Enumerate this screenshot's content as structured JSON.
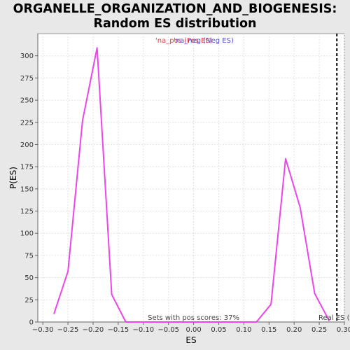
{
  "chart_data": {
    "type": "line",
    "title": "ORGANELLE_ORGANIZATION_AND_BIOGENESIS:",
    "subtitle": "Random ES distribution",
    "xlabel": "ES",
    "ylabel": "P(ES)",
    "xlim": [
      -0.31,
      0.3
    ],
    "ylim": [
      0,
      325
    ],
    "xticks": [
      -0.3,
      -0.25,
      -0.2,
      -0.15,
      -0.1,
      -0.05,
      0.0,
      0.05,
      0.1,
      0.15,
      0.2,
      0.25,
      0.3
    ],
    "xtick_labels": [
      "−0.30",
      "−0.25",
      "−0.20",
      "−0.15",
      "−0.10",
      "−0.05",
      "0.00",
      "0.05",
      "0.10",
      "0.15",
      "0.20",
      "0.25",
      "0.30"
    ],
    "yticks": [
      0,
      25,
      50,
      75,
      100,
      125,
      150,
      175,
      200,
      225,
      250,
      275,
      300
    ],
    "ytick_labels": [
      "0",
      "25",
      "50",
      "75",
      "100",
      "125",
      "150",
      "175",
      "200",
      "225",
      "250",
      "275",
      "300"
    ],
    "grid": true,
    "legend_placement": "top-center",
    "series": [
      {
        "name": "'na_pos (Pos ES)",
        "color": "#e04040",
        "x": [],
        "y": []
      },
      {
        "name": "'na_neg (Neg ES)",
        "color": "#5050d0",
        "x": [],
        "y": []
      },
      {
        "name": "",
        "color": "#ee44ee",
        "x": [
          -0.278,
          -0.25,
          -0.221,
          -0.192,
          -0.163,
          -0.135,
          -0.106,
          -0.077,
          -0.048,
          -0.02,
          0.009,
          0.038,
          0.067,
          0.096,
          0.125,
          0.154,
          0.183,
          0.212,
          0.241,
          0.27
        ],
        "y": [
          9,
          57,
          227,
          309,
          31,
          0,
          0,
          0,
          0,
          0,
          0,
          0,
          0,
          0,
          0,
          20,
          184,
          129,
          32,
          1
        ]
      }
    ],
    "real_es_line": {
      "x": 0.285,
      "label": "Real ES ("
    },
    "annotation": "Sets with pos scores: 37%"
  }
}
